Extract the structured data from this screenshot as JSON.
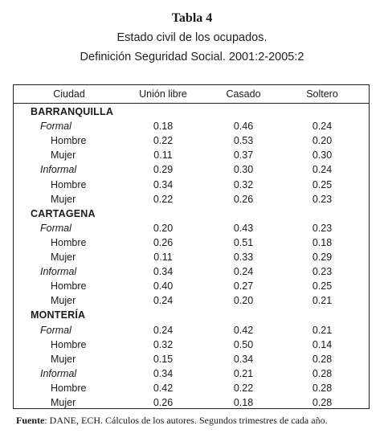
{
  "title": "Tabla 4",
  "subtitle_line1": "Estado civil de los ocupados.",
  "subtitle_line2": "Definición Seguridad Social. 2001:2-2005:2",
  "headers": [
    "Ciudad",
    "Unión libre",
    "Casado",
    "Soltero"
  ],
  "rows": [
    {
      "type": "city",
      "label": "BARRANQUILLA"
    },
    {
      "type": "group",
      "label": "Formal",
      "values": [
        "0.18",
        "0.46",
        "0.24"
      ]
    },
    {
      "type": "sub",
      "label": "Hombre",
      "values": [
        "0.22",
        "0.53",
        "0.20"
      ]
    },
    {
      "type": "sub",
      "label": "Mujer",
      "values": [
        "0.11",
        "0.37",
        "0.30"
      ]
    },
    {
      "type": "group",
      "label": "Informal",
      "values": [
        "0.29",
        "0.30",
        "0.24"
      ]
    },
    {
      "type": "sub",
      "label": "Hombre",
      "values": [
        "0.34",
        "0.32",
        "0.25"
      ]
    },
    {
      "type": "sub",
      "label": "Mujer",
      "values": [
        "0.22",
        "0.26",
        "0.23"
      ]
    },
    {
      "type": "city",
      "label": "CARTAGENA"
    },
    {
      "type": "group",
      "label": "Formal",
      "values": [
        "0.20",
        "0.43",
        "0.23"
      ]
    },
    {
      "type": "sub",
      "label": "Hombre",
      "values": [
        "0.26",
        "0.51",
        "0.18"
      ]
    },
    {
      "type": "sub",
      "label": "Mujer",
      "values": [
        "0.11",
        "0.33",
        "0.29"
      ]
    },
    {
      "type": "group",
      "label": "Informal",
      "values": [
        "0.34",
        "0.24",
        "0.23"
      ]
    },
    {
      "type": "sub",
      "label": "Hombre",
      "values": [
        "0.40",
        "0.27",
        "0.25"
      ]
    },
    {
      "type": "sub",
      "label": "Mujer",
      "values": [
        "0.24",
        "0.20",
        "0.21"
      ]
    },
    {
      "type": "city",
      "label": "MONTERÍA"
    },
    {
      "type": "group",
      "label": "Formal",
      "values": [
        "0.24",
        "0.42",
        "0.21"
      ]
    },
    {
      "type": "sub",
      "label": "Hombre",
      "values": [
        "0.32",
        "0.50",
        "0.14"
      ]
    },
    {
      "type": "sub",
      "label": "Mujer",
      "values": [
        "0.15",
        "0.34",
        "0.28"
      ]
    },
    {
      "type": "group",
      "label": "Informal",
      "values": [
        "0.34",
        "0.21",
        "0.28"
      ]
    },
    {
      "type": "sub",
      "label": "Hombre",
      "values": [
        "0.42",
        "0.22",
        "0.28"
      ]
    },
    {
      "type": "sub",
      "label": "Mujer",
      "values": [
        "0.26",
        "0.18",
        "0.28"
      ]
    }
  ],
  "source_label": "Fuente",
  "source_text": ": DANE, ECH. Cálculos de los autores. Segundos trimestres de cada año."
}
